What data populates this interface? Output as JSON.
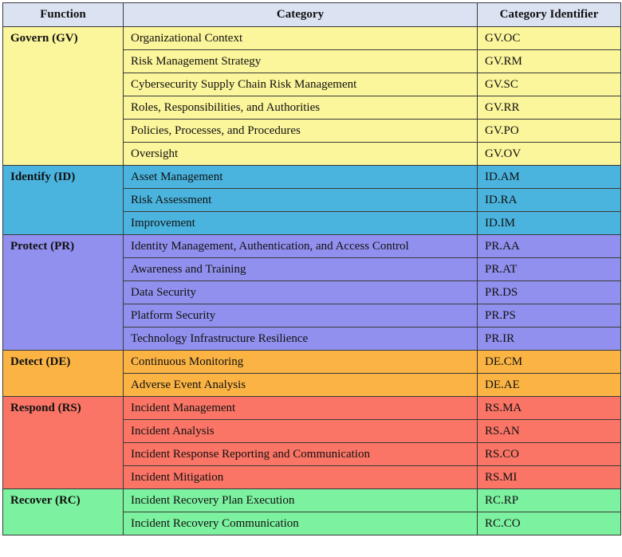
{
  "headers": {
    "function": "Function",
    "category": "Category",
    "identifier": "Category Identifier"
  },
  "groups": [
    {
      "function": "Govern (GV)",
      "color": "#fbf59b",
      "rows": [
        {
          "category": "Organizational Context",
          "id": "GV.OC"
        },
        {
          "category": "Risk Management Strategy",
          "id": "GV.RM"
        },
        {
          "category": "Cybersecurity Supply Chain Risk Management",
          "id": "GV.SC"
        },
        {
          "category": "Roles, Responsibilities, and Authorities",
          "id": "GV.RR"
        },
        {
          "category": "Policies, Processes, and Procedures",
          "id": "GV.PO"
        },
        {
          "category": "Oversight",
          "id": "GV.OV"
        }
      ]
    },
    {
      "function": "Identify (ID)",
      "color": "#4bb4de",
      "rows": [
        {
          "category": "Asset Management",
          "id": "ID.AM"
        },
        {
          "category": "Risk Assessment",
          "id": "ID.RA"
        },
        {
          "category": "Improvement",
          "id": "ID.IM"
        }
      ]
    },
    {
      "function": "Protect (PR)",
      "color": "#9190ee",
      "rows": [
        {
          "category": "Identity Management, Authentication, and Access Control",
          "id": "PR.AA"
        },
        {
          "category": "Awareness and Training",
          "id": "PR.AT"
        },
        {
          "category": "Data Security",
          "id": "PR.DS"
        },
        {
          "category": "Platform Security",
          "id": "PR.PS"
        },
        {
          "category": "Technology Infrastructure Resilience",
          "id": "PR.IR"
        }
      ]
    },
    {
      "function": "Detect (DE)",
      "color": "#fbb444",
      "rows": [
        {
          "category": "Continuous Monitoring",
          "id": "DE.CM"
        },
        {
          "category": "Adverse Event Analysis",
          "id": "DE.AE"
        }
      ]
    },
    {
      "function": "Respond (RS)",
      "color": "#fa7566",
      "rows": [
        {
          "category": "Incident Management",
          "id": "RS.MA"
        },
        {
          "category": "Incident Analysis",
          "id": "RS.AN"
        },
        {
          "category": "Incident Response Reporting and Communication",
          "id": "RS.CO"
        },
        {
          "category": "Incident Mitigation",
          "id": "RS.MI"
        }
      ]
    },
    {
      "function": "Recover (RC)",
      "color": "#7cf19f",
      "rows": [
        {
          "category": "Incident Recovery Plan Execution",
          "id": "RC.RP"
        },
        {
          "category": "Incident Recovery Communication",
          "id": "RC.CO"
        }
      ]
    }
  ]
}
